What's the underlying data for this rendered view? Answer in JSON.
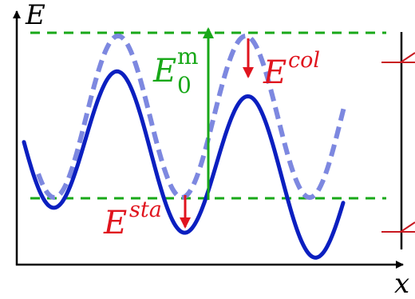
{
  "axes": {
    "y_label": "E",
    "x_label": "x"
  },
  "labels": {
    "e0m_base": "E",
    "e0m_sup": "m",
    "e0m_sub": "0",
    "ecol_base": "E",
    "ecol_sup": "col",
    "esta_base": "E",
    "esta_sup": "sta"
  },
  "colors": {
    "axis": "#000000",
    "solid_curve": "#0b1fc0",
    "dashed_curve": "#7d88e0",
    "green": "#18a818",
    "red": "#e0141e"
  }
}
